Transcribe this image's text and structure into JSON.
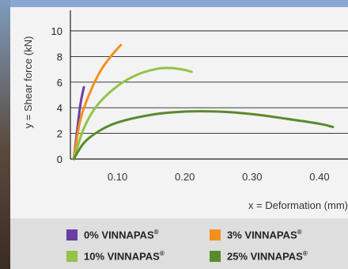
{
  "colors": {
    "series_0": "#6a3fa0",
    "series_3": "#f3901c",
    "series_10": "#92c347",
    "series_25": "#5a8a2e",
    "axis": "#222222"
  },
  "chart_data": {
    "type": "line",
    "title": "",
    "ylabel": "y = Shear force (kN)",
    "xlabel": "x = Deformation (mm)",
    "xlim": [
      0.03,
      0.44
    ],
    "ylim": [
      0,
      10
    ],
    "x_ticks": [
      0.1,
      0.2,
      0.3,
      0.4
    ],
    "x_tick_labels": [
      "0.10",
      "0.20",
      "0.30",
      "0.40"
    ],
    "y_ticks": [
      0,
      2,
      4,
      6,
      8,
      10
    ],
    "y_tick_labels": [
      "0",
      "2",
      "4",
      "6",
      "8",
      "10"
    ],
    "grid": "horizontal",
    "legend_position": "bottom",
    "series": [
      {
        "name": "0% VINNAPAS",
        "color_key": "series_0",
        "x": [
          0.035,
          0.04,
          0.045,
          0.05
        ],
        "y": [
          0,
          2.2,
          4.3,
          5.6
        ]
      },
      {
        "name": "3% VINNAPAS",
        "color_key": "series_3",
        "x": [
          0.035,
          0.045,
          0.06,
          0.075,
          0.09,
          0.105
        ],
        "y": [
          0,
          3.1,
          5.3,
          6.9,
          8.0,
          8.9
        ]
      },
      {
        "name": "10% VINNAPAS",
        "color_key": "series_10",
        "x": [
          0.035,
          0.05,
          0.07,
          0.1,
          0.13,
          0.16,
          0.18,
          0.2,
          0.21
        ],
        "y": [
          0,
          2.4,
          4.2,
          5.7,
          6.6,
          7.05,
          7.1,
          6.95,
          6.8
        ]
      },
      {
        "name": "25% VINNAPAS",
        "color_key": "series_25",
        "x": [
          0.035,
          0.05,
          0.07,
          0.1,
          0.15,
          0.2,
          0.25,
          0.3,
          0.35,
          0.4,
          0.42
        ],
        "y": [
          0,
          1.25,
          2.1,
          2.85,
          3.45,
          3.7,
          3.7,
          3.5,
          3.15,
          2.75,
          2.5
        ]
      }
    ]
  },
  "legend": {
    "items": [
      {
        "label": "0% VINNAPAS",
        "mark": "®",
        "color_key": "series_0"
      },
      {
        "label": "3% VINNAPAS",
        "mark": "®",
        "color_key": "series_3"
      },
      {
        "label": "10% VINNAPAS",
        "mark": "®",
        "color_key": "series_10"
      },
      {
        "label": "25% VINNAPAS",
        "mark": "®",
        "color_key": "series_25"
      }
    ]
  }
}
